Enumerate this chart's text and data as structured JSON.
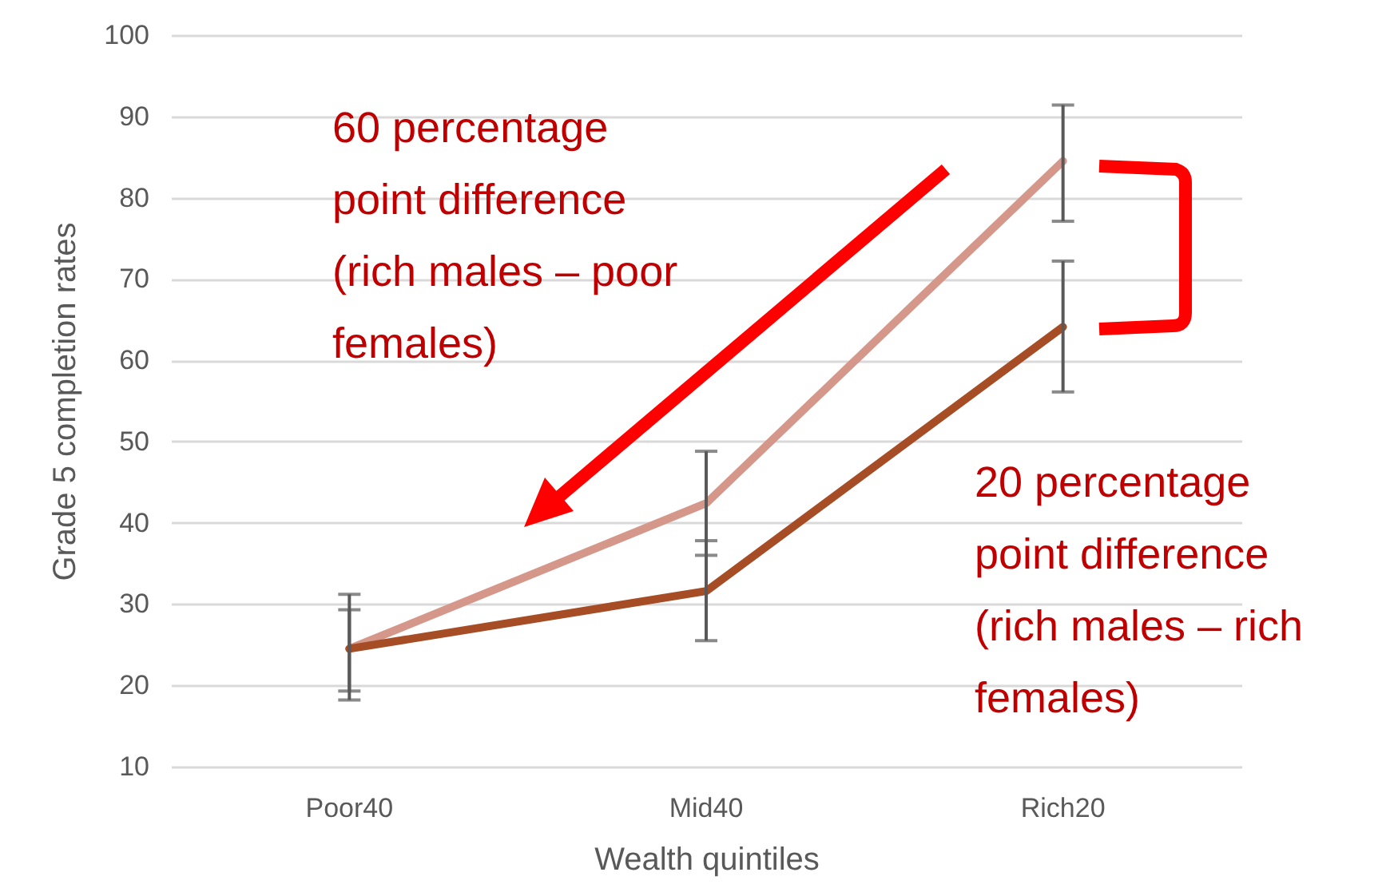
{
  "chart_data": {
    "type": "line",
    "xlabel": "Wealth quintiles",
    "ylabel": "Grade 5 completion rates",
    "categories": [
      "Poor40",
      "Mid40",
      "Rich20"
    ],
    "series": [
      {
        "color": "#d4978a",
        "values": [
          24.5,
          42.4,
          84.5
        ],
        "errors": [
          [
            18.2,
            31.2
          ],
          [
            36.0,
            48.8
          ],
          [
            77.1,
            91.4
          ]
        ]
      },
      {
        "color": "#a64d26",
        "values": [
          24.5,
          31.6,
          64.1
        ],
        "errors": [
          [
            19.3,
            29.3
          ],
          [
            25.5,
            37.8
          ],
          [
            56.1,
            72.2
          ]
        ]
      }
    ],
    "ylim": [
      10,
      100
    ],
    "yticks": [
      10,
      20,
      30,
      40,
      50,
      60,
      70,
      80,
      90,
      100
    ],
    "grid": "y",
    "legend": false,
    "marker": "none",
    "line_style": "solid",
    "annotations": [
      "60 percentage point difference (rich males – poor females)",
      "20 percentage point difference (rich males – rich females)"
    ]
  }
}
